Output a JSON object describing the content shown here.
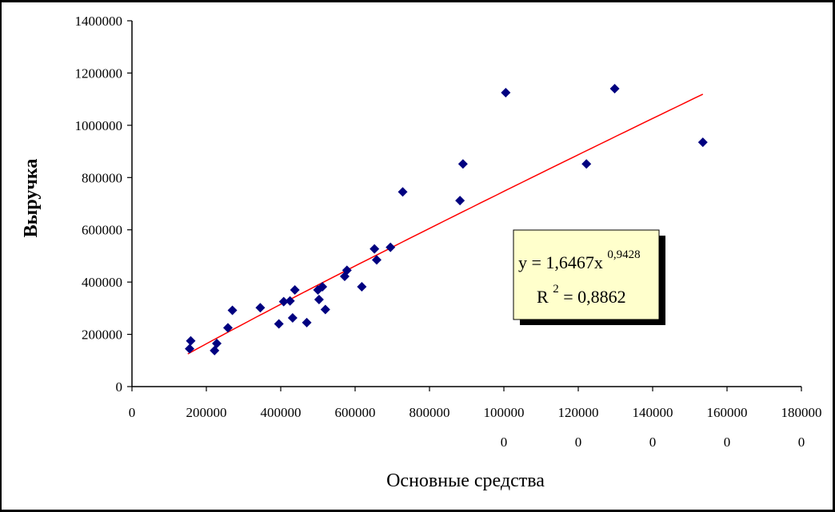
{
  "chart_data": {
    "type": "scatter",
    "xlabel": "Основные средства",
    "ylabel": "Выручка",
    "xlim": [
      0,
      1800000
    ],
    "ylim": [
      0,
      1400000
    ],
    "x_ticks": [
      {
        "value": 0,
        "line1": "0",
        "line2": ""
      },
      {
        "value": 200000,
        "line1": "200000",
        "line2": ""
      },
      {
        "value": 400000,
        "line1": "400000",
        "line2": ""
      },
      {
        "value": 600000,
        "line1": "600000",
        "line2": ""
      },
      {
        "value": 800000,
        "line1": "800000",
        "line2": ""
      },
      {
        "value": 1000000,
        "line1": "100000",
        "line2": "0"
      },
      {
        "value": 1200000,
        "line1": "120000",
        "line2": "0"
      },
      {
        "value": 1400000,
        "line1": "140000",
        "line2": "0"
      },
      {
        "value": 1600000,
        "line1": "160000",
        "line2": "0"
      },
      {
        "value": 1800000,
        "line1": "180000",
        "line2": "0"
      }
    ],
    "y_ticks": [
      {
        "value": 0,
        "label": "0"
      },
      {
        "value": 200000,
        "label": "200000"
      },
      {
        "value": 400000,
        "label": "400000"
      },
      {
        "value": 600000,
        "label": "600000"
      },
      {
        "value": 800000,
        "label": "800000"
      },
      {
        "value": 1000000,
        "label": "1000000"
      },
      {
        "value": 1200000,
        "label": "1200000"
      },
      {
        "value": 1400000,
        "label": "1400000"
      }
    ],
    "points": [
      [
        155000,
        145000
      ],
      [
        158000,
        175000
      ],
      [
        222000,
        138000
      ],
      [
        228000,
        165000
      ],
      [
        258000,
        225000
      ],
      [
        270000,
        292000
      ],
      [
        345000,
        302000
      ],
      [
        395000,
        240000
      ],
      [
        408000,
        325000
      ],
      [
        425000,
        328000
      ],
      [
        432000,
        263000
      ],
      [
        438000,
        370000
      ],
      [
        470000,
        245000
      ],
      [
        500000,
        370000
      ],
      [
        503000,
        333000
      ],
      [
        512000,
        382000
      ],
      [
        520000,
        295000
      ],
      [
        572000,
        422000
      ],
      [
        578000,
        445000
      ],
      [
        618000,
        382000
      ],
      [
        652000,
        527000
      ],
      [
        658000,
        485000
      ],
      [
        695000,
        533000
      ],
      [
        728000,
        745000
      ],
      [
        882000,
        712000
      ],
      [
        890000,
        852000
      ],
      [
        1005000,
        1125000
      ],
      [
        1222000,
        852000
      ],
      [
        1298000,
        1140000
      ],
      [
        1535000,
        935000
      ]
    ],
    "trendline": {
      "type": "power",
      "a": 1.6467,
      "b": 0.9428,
      "x_start": 150000,
      "x_end": 1535000,
      "color": "#ff0000"
    },
    "equation": {
      "line1_base": "y = 1,6467x",
      "line1_exp": "0,9428",
      "line2_base": "R",
      "line2_exp": "2",
      "line2_rest": " = 0,8862"
    },
    "marker_color": "#000080",
    "legend_box_color": "#ffffcc",
    "grid": false
  }
}
